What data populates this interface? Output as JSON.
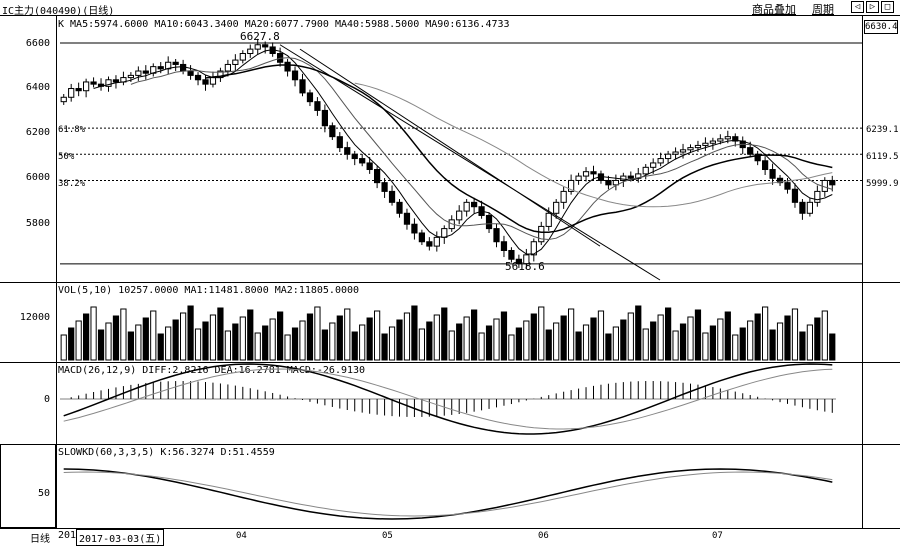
{
  "topbar": {
    "title": "IC主力(040490)(日线)",
    "menu_overlay": "商品叠加",
    "menu_period": "周期",
    "ctrl_prev": "◁",
    "ctrl_next": "▷",
    "ctrl_restore": "□"
  },
  "main_panel": {
    "indicator_text": "K  MA5:5974.6000  MA10:6043.3400  MA20:6077.7900  MA40:5988.5000  MA90:6136.4733",
    "current_price": "6630.4",
    "y_labels": [
      "6600",
      "6400",
      "6200",
      "6000",
      "5800"
    ],
    "high_label": "6627.8",
    "low_label": "5618.6",
    "fib_levels": [
      {
        "left": "61.8%",
        "right": "6239.1"
      },
      {
        "left": "50%",
        "right": "6119.5"
      },
      {
        "left": "38.2%",
        "right": "5999.9"
      }
    ]
  },
  "volume_panel": {
    "indicator_text": "VOL(5,10)  10257.0000  MA1:11481.8000  MA2:11805.0000",
    "y_label": "12000"
  },
  "macd_panel": {
    "indicator_text": "MACD(26,12,9)  DIFF:2.8216  DEA:16.2781  MACD:-26.9130",
    "y_label": "0"
  },
  "kd_panel": {
    "indicator_text": "SLOWKD(60,3,3,5)  K:56.3274  D:51.4559",
    "y_label": "50"
  },
  "bottombar": {
    "period_label": "日线",
    "cursor_prefix": "201",
    "cursor_date": "2017-03-03(五)",
    "months": [
      "04",
      "05",
      "06",
      "07"
    ]
  },
  "chart_data": {
    "type": "candlestick",
    "price_range": [
      5600,
      6660
    ],
    "high": 6627.8,
    "low": 5618.6,
    "fib_levels": [
      6239.1,
      6119.5,
      5999.9
    ],
    "candles_close": [
      6380,
      6420,
      6410,
      6450,
      6440,
      6430,
      6460,
      6450,
      6470,
      6480,
      6500,
      6490,
      6520,
      6510,
      6540,
      6530,
      6500,
      6480,
      6460,
      6440,
      6470,
      6500,
      6530,
      6550,
      6580,
      6600,
      6620,
      6610,
      6580,
      6540,
      6500,
      6460,
      6400,
      6360,
      6320,
      6250,
      6200,
      6150,
      6120,
      6100,
      6080,
      6050,
      5990,
      5950,
      5900,
      5850,
      5800,
      5760,
      5720,
      5700,
      5740,
      5780,
      5820,
      5860,
      5900,
      5880,
      5840,
      5780,
      5720,
      5680,
      5640,
      5620,
      5660,
      5720,
      5790,
      5850,
      5900,
      5950,
      6000,
      6020,
      6040,
      6030,
      6000,
      5980,
      6000,
      6020,
      6010,
      6030,
      6060,
      6080,
      6100,
      6120,
      6130,
      6140,
      6150,
      6160,
      6170,
      6180,
      6190,
      6200,
      6180,
      6150,
      6120,
      6090,
      6050,
      6010,
      5990,
      5960,
      5900,
      5850,
      5900,
      5950,
      6000,
      5980
    ]
  }
}
